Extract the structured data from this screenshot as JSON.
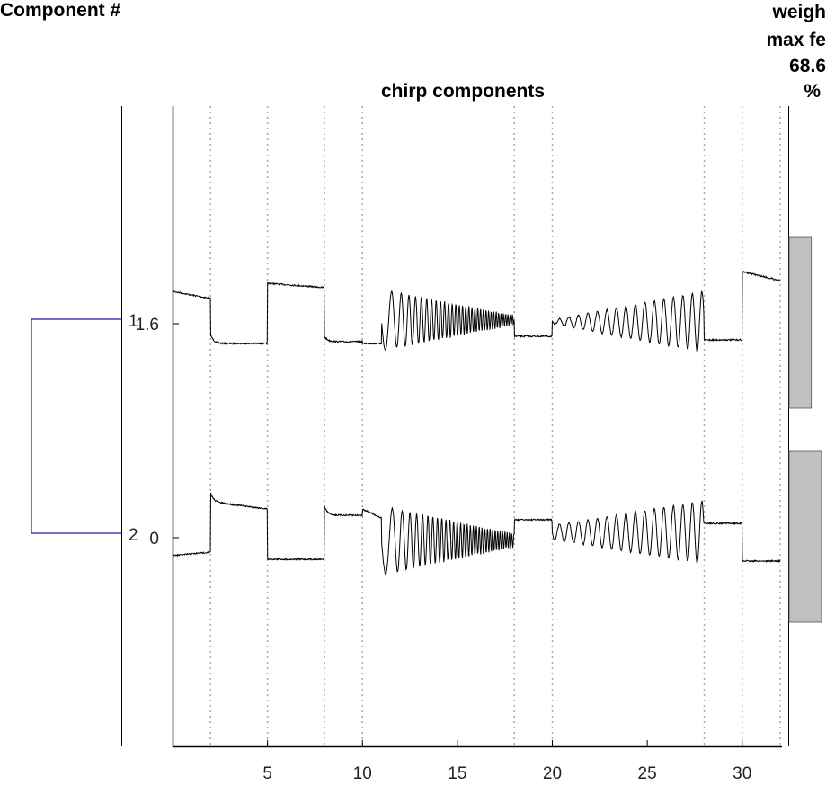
{
  "headers": {
    "left": "Component #",
    "weight_lines": [
      "weigh",
      "max fe",
      "68.6",
      "%"
    ]
  },
  "chart_data": {
    "type": "line",
    "title": "chirp components",
    "x_range": [
      0,
      32
    ],
    "x_ticks": [
      5,
      10,
      15,
      20,
      25,
      30
    ],
    "event_lines": [
      2,
      5,
      8,
      10,
      18,
      20,
      28,
      30,
      32
    ],
    "y_ticks": [
      {
        "label": "1.6",
        "value": 1.6
      },
      {
        "label": "0",
        "value": 0
      }
    ],
    "components": [
      {
        "id": "1",
        "offset": 1.6,
        "weight": 0.686
      },
      {
        "id": "2",
        "offset": 0,
        "weight": 1.0
      }
    ],
    "colors": {
      "trace": "#000000",
      "dendrogram": "#1a1aaa",
      "weight_bar": "#c0c0c0",
      "event_line": "#aaaaaa"
    }
  }
}
